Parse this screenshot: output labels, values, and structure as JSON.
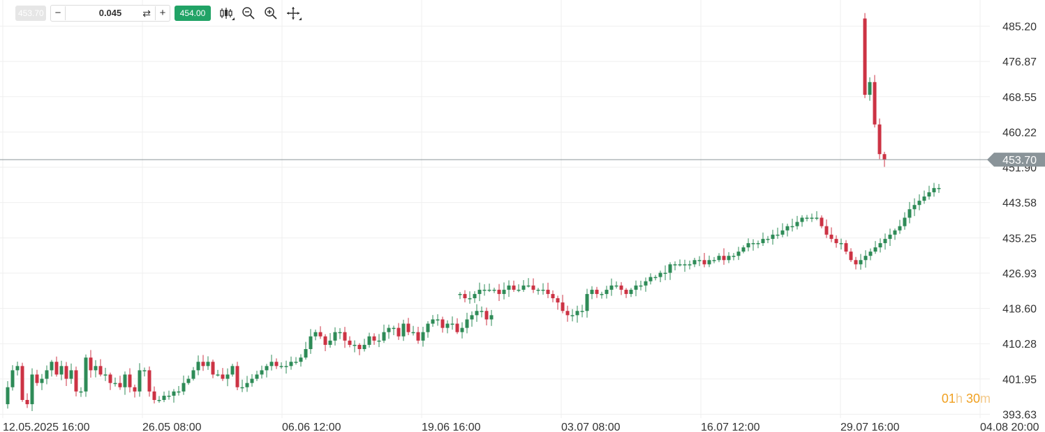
{
  "toolbar": {
    "sell_price": "453.70",
    "minus_label": "−",
    "quantity": "0.045",
    "swap_icon": "⇄",
    "plus_label": "+",
    "buy_price": "454.00",
    "tools": [
      "chart-type-icon",
      "zoom-out-icon",
      "zoom-in-icon",
      "crosshair-icon"
    ]
  },
  "timer": {
    "hours": "01",
    "h_label": "h",
    "minutes": "30",
    "m_label": "m"
  },
  "colors": {
    "up": "#2e8b57",
    "down": "#cc3344",
    "grid": "#efefef",
    "current_line": "#8a9499",
    "current_tag": "#8a9499"
  },
  "chart_data": {
    "type": "candlestick",
    "current_price": "453.70",
    "y_ticks": [
      "485.20",
      "476.87",
      "468.55",
      "460.22",
      "451.90",
      "443.58",
      "435.25",
      "426.93",
      "418.60",
      "410.28",
      "401.95",
      "393.63"
    ],
    "ylim": [
      393.63,
      485.2
    ],
    "x_ticks": [
      "12.05.2025 16:00",
      "26.05 08:00",
      "06.06 12:00",
      "19.06 16:00",
      "03.07 08:00",
      "16.07 12:00",
      "29.07 16:00",
      "04.08 20:00"
    ],
    "xlim": [
      0,
      700
    ],
    "x_tick_positions": [
      0,
      100,
      200,
      300,
      400,
      500,
      600,
      700
    ],
    "segments": [
      {
        "start": 0,
        "step": 3.5,
        "closes": [
          396,
          400,
          404,
          405,
          397,
          396,
          403,
          401,
          402,
          404,
          406,
          403,
          405,
          402,
          404,
          399,
          399,
          407,
          404,
          405,
          403,
          403,
          401,
          401,
          400,
          403,
          400,
          399,
          404,
          404,
          399,
          397,
          397,
          398,
          398,
          399,
          399,
          401,
          402,
          404,
          406,
          405,
          406,
          403,
          403,
          402,
          403,
          405,
          400,
          400,
          401,
          402,
          403,
          404,
          405,
          406,
          405,
          405,
          405,
          406,
          406,
          407,
          409,
          412,
          413,
          412,
          410,
          411,
          413,
          413,
          411,
          410,
          410,
          409,
          410,
          412,
          411,
          411,
          413,
          414,
          414,
          412,
          415,
          413,
          413,
          411,
          413,
          415,
          416,
          416,
          414,
          415,
          415,
          413,
          414,
          416,
          417,
          418,
          418,
          416,
          417
        ]
      },
      {
        "start": 324,
        "step": 3.5,
        "closes": [
          422,
          422,
          421,
          421,
          422,
          423,
          423,
          423,
          423,
          422,
          423,
          424,
          423,
          423,
          424,
          424,
          423,
          423,
          423,
          422,
          421,
          420,
          418,
          417,
          417,
          418,
          418,
          422,
          423,
          422,
          422,
          423,
          424,
          424,
          423,
          422,
          423,
          424,
          424,
          425,
          426,
          426,
          427,
          427,
          429,
          429,
          429,
          429,
          429,
          430,
          430,
          429,
          430,
          430,
          431,
          430,
          431,
          431,
          432,
          433,
          434,
          434,
          434,
          435,
          435,
          436,
          436,
          437,
          438,
          438,
          439,
          440,
          440,
          440,
          440,
          438,
          436,
          435,
          434,
          434,
          432,
          430,
          429,
          430,
          431,
          432,
          433,
          434,
          435,
          436,
          437,
          438,
          440,
          442,
          443,
          444,
          445,
          446,
          447,
          447
        ]
      },
      {
        "start": 614,
        "step": 3.5,
        "closes": [
          487,
          469,
          472,
          462,
          455,
          453.7
        ]
      }
    ]
  }
}
